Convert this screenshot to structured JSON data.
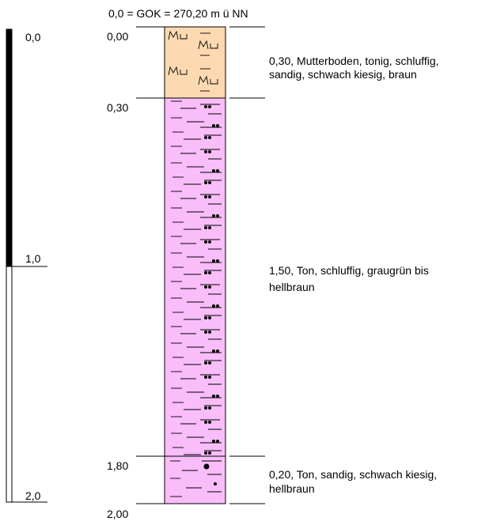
{
  "header": {
    "title": "0,0 = GOK = 270,20 m ü NN"
  },
  "scale": {
    "ticks": [
      "0,0",
      "1,0",
      "2,0"
    ]
  },
  "layers": [
    {
      "top": "0,00",
      "description": [
        "0,30, Mutterboden, tonig, schluffig,",
        "sandig, schwach kiesig, braun"
      ]
    },
    {
      "top": "0,30",
      "description": [
        "1,50, Ton, schluffig, graugrün bis",
        "hellbraun"
      ]
    },
    {
      "top": "1,80",
      "description": [
        "0,20, Ton, sandig, schwach kiesig,",
        "hellbraun"
      ]
    }
  ],
  "bottom": "2,00"
}
